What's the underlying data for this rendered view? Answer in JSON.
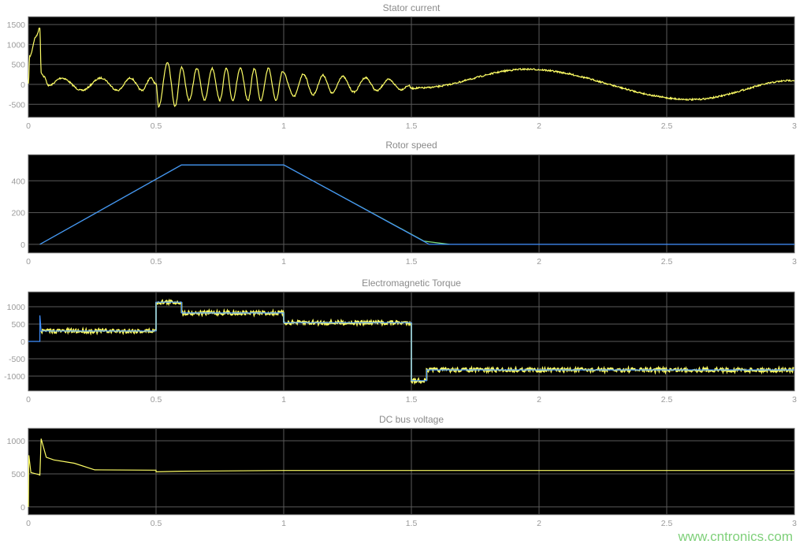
{
  "colors": {
    "background": "#000000",
    "grid": "#5a5a5a",
    "signal_yellow": "#ffff66",
    "signal_blue": "#3f8fff",
    "signal_green": "#7fe07f"
  },
  "watermark": "www.cntronics.com",
  "chart_data": [
    {
      "type": "line",
      "title": "Stator current",
      "xlim": [
        0,
        3
      ],
      "ylim": [
        -830,
        1700
      ],
      "xticks": [
        0,
        0.5,
        1,
        1.5,
        2,
        2.5,
        3
      ],
      "xtick_labels": [
        "0",
        "0.5",
        "1",
        "1.5",
        "2",
        "2.5",
        "3"
      ],
      "yticks": [
        -500,
        0,
        500,
        1000,
        1500
      ],
      "ytick_labels": [
        "-500",
        "0",
        "500",
        "1000",
        "1500"
      ],
      "grid": true,
      "series": [
        {
          "color": "#ffff66",
          "smooth_extrema": true,
          "points": [
            [
              0,
              0
            ],
            [
              0.005,
              700
            ],
            [
              0.03,
              1200
            ],
            [
              0.045,
              1420
            ],
            [
              0.05,
              300
            ],
            [
              0.06,
              200
            ],
            [
              0.08,
              -30
            ],
            [
              0.13,
              160
            ],
            [
              0.21,
              -150
            ],
            [
              0.285,
              160
            ],
            [
              0.35,
              -150
            ],
            [
              0.4,
              160
            ],
            [
              0.445,
              -150
            ],
            [
              0.48,
              160
            ],
            [
              0.5,
              0
            ],
            [
              0.51,
              -550
            ],
            [
              0.545,
              560
            ],
            [
              0.575,
              -550
            ],
            [
              0.6,
              430
            ],
            [
              0.63,
              -400
            ],
            [
              0.66,
              400
            ],
            [
              0.69,
              -400
            ],
            [
              0.72,
              400
            ],
            [
              0.75,
              -400
            ],
            [
              0.775,
              400
            ],
            [
              0.8,
              -400
            ],
            [
              0.83,
              400
            ],
            [
              0.86,
              -400
            ],
            [
              0.885,
              400
            ],
            [
              0.91,
              -400
            ],
            [
              0.94,
              400
            ],
            [
              0.97,
              -400
            ],
            [
              0.995,
              320
            ],
            [
              1.04,
              -300
            ],
            [
              1.077,
              260
            ],
            [
              1.115,
              -260
            ],
            [
              1.154,
              230
            ],
            [
              1.19,
              -220
            ],
            [
              1.23,
              200
            ],
            [
              1.275,
              -190
            ],
            [
              1.32,
              170
            ],
            [
              1.365,
              -160
            ],
            [
              1.41,
              120
            ],
            [
              1.46,
              -130
            ],
            [
              1.49,
              -30
            ],
            [
              1.5,
              -100
            ],
            [
              1.53,
              -90
            ],
            [
              1.95,
              380
            ],
            [
              2.6,
              -380
            ],
            [
              3.0,
              100
            ]
          ]
        }
      ]
    },
    {
      "type": "line",
      "title": "Rotor speed",
      "xlim": [
        0,
        3
      ],
      "ylim": [
        -55,
        565
      ],
      "xticks": [
        0,
        0.5,
        1,
        1.5,
        2,
        2.5,
        3
      ],
      "xtick_labels": [
        "0",
        "0.5",
        "1",
        "1.5",
        "2",
        "2.5",
        "3"
      ],
      "yticks": [
        0,
        200,
        400
      ],
      "ytick_labels": [
        "0",
        "200",
        "400"
      ],
      "grid": true,
      "series": [
        {
          "color": "#7fe07f",
          "points": [
            [
              0.045,
              0
            ],
            [
              0.6,
              500
            ],
            [
              1.0,
              500
            ],
            [
              1.55,
              20
            ],
            [
              1.65,
              0
            ]
          ]
        },
        {
          "color": "#3f8fff",
          "points": [
            [
              0.045,
              0
            ],
            [
              0.6,
              500
            ],
            [
              1.0,
              500
            ],
            [
              1.57,
              0
            ],
            [
              3.0,
              0
            ]
          ]
        }
      ]
    },
    {
      "type": "line",
      "title": "Electromagnetic Torque",
      "xlim": [
        0,
        3
      ],
      "ylim": [
        -1430,
        1430
      ],
      "xticks": [
        0,
        0.5,
        1,
        1.5,
        2,
        2.5,
        3
      ],
      "xtick_labels": [
        "0",
        "0.5",
        "1",
        "1.5",
        "2",
        "2.5",
        "3"
      ],
      "yticks": [
        -1000,
        -500,
        0,
        500,
        1000
      ],
      "ytick_labels": [
        "-1000",
        "-500",
        "0",
        "500",
        "1000"
      ],
      "grid": true,
      "series": [
        {
          "color": "#ffff66",
          "noisy": true,
          "points": [
            [
              0.05,
              300
            ],
            [
              0.5,
              300
            ],
            [
              0.5,
              1130
            ],
            [
              0.6,
              1130
            ],
            [
              0.6,
              820
            ],
            [
              1.0,
              820
            ],
            [
              1.0,
              540
            ],
            [
              1.5,
              540
            ],
            [
              1.5,
              -1130
            ],
            [
              1.56,
              -1130
            ],
            [
              1.56,
              -820
            ],
            [
              3.0,
              -820
            ]
          ]
        },
        {
          "color": "#3f8fff",
          "points": [
            [
              0,
              0
            ],
            [
              0.045,
              0
            ],
            [
              0.045,
              750
            ],
            [
              0.05,
              300
            ],
            [
              0.5,
              300
            ],
            [
              0.5,
              1130
            ],
            [
              0.6,
              1130
            ],
            [
              0.6,
              820
            ],
            [
              1.0,
              820
            ],
            [
              1.0,
              540
            ],
            [
              1.5,
              540
            ],
            [
              1.5,
              -1130
            ],
            [
              1.56,
              -1130
            ],
            [
              1.56,
              -820
            ],
            [
              3.0,
              -820
            ]
          ]
        }
      ]
    },
    {
      "type": "line",
      "title": "DC bus voltage",
      "xlim": [
        0,
        3
      ],
      "ylim": [
        -120,
        1190
      ],
      "xticks": [
        0,
        0.5,
        1,
        1.5,
        2,
        2.5,
        3
      ],
      "xtick_labels": [
        "0",
        "0.5",
        "1",
        "1.5",
        "2",
        "2.5",
        "3"
      ],
      "yticks": [
        0,
        500,
        1000
      ],
      "ytick_labels": [
        "0",
        "500",
        "1000"
      ],
      "grid": true,
      "series": [
        {
          "color": "#ffff66",
          "points": [
            [
              0,
              0
            ],
            [
              0.002,
              780
            ],
            [
              0.01,
              520
            ],
            [
              0.04,
              490
            ],
            [
              0.045,
              480
            ],
            [
              0.05,
              1030
            ],
            [
              0.07,
              750
            ],
            [
              0.1,
              710
            ],
            [
              0.18,
              660
            ],
            [
              0.26,
              560
            ],
            [
              0.5,
              555
            ],
            [
              0.5,
              530
            ],
            [
              0.6,
              540
            ],
            [
              1.0,
              550
            ],
            [
              3.0,
              550
            ]
          ]
        }
      ]
    }
  ]
}
